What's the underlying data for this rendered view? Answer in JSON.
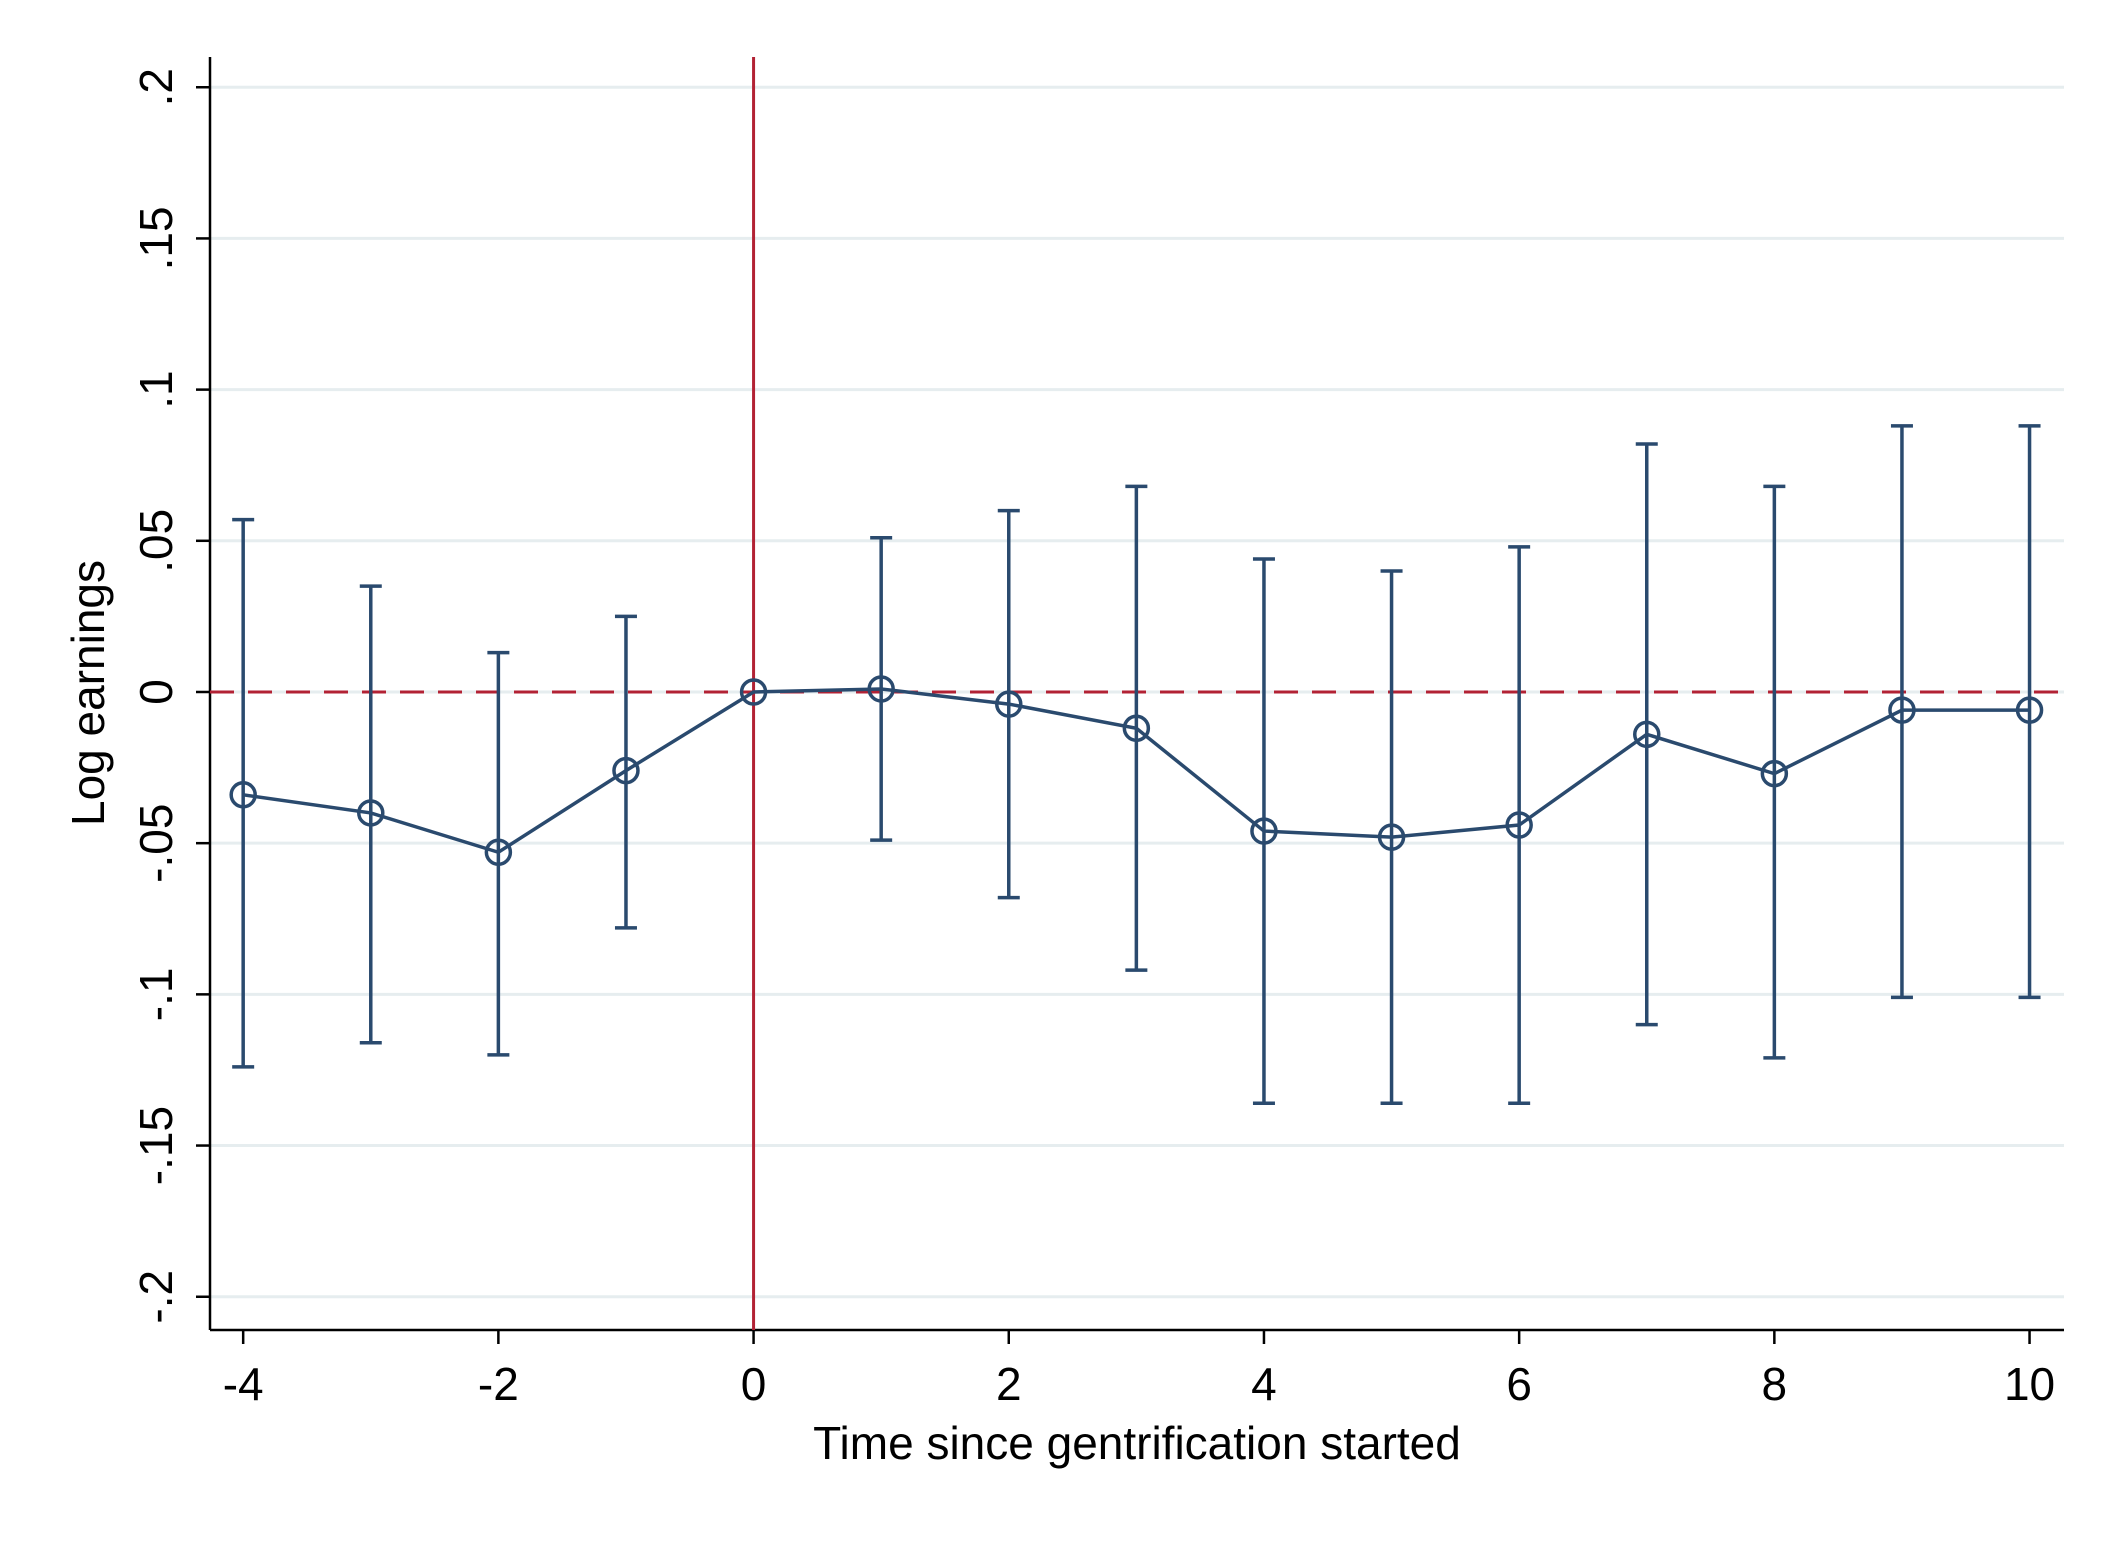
{
  "chart_data": {
    "type": "errorbar-line",
    "x_label": "Time since gentrification started",
    "y_label": "Log earnings",
    "x": [
      -4,
      -3,
      -2,
      -1,
      0,
      1,
      2,
      3,
      4,
      5,
      6,
      7,
      8,
      9,
      10
    ],
    "series": [
      {
        "color": "#2a4a6e",
        "values": [
          -0.034,
          -0.04,
          -0.053,
          -0.026,
          0,
          0.001,
          -0.004,
          -0.012,
          -0.046,
          -0.048,
          -0.044,
          -0.014,
          -0.027,
          -0.006,
          -0.006
        ],
        "lower": [
          -0.124,
          -0.116,
          -0.12,
          -0.078,
          null,
          -0.049,
          -0.068,
          -0.092,
          -0.136,
          -0.136,
          -0.136,
          -0.11,
          -0.121,
          -0.101,
          -0.101
        ],
        "upper": [
          0.057,
          0.035,
          0.013,
          0.025,
          null,
          0.051,
          0.06,
          0.068,
          0.044,
          0.04,
          0.048,
          0.082,
          0.068,
          0.088,
          0.088
        ]
      }
    ],
    "reference_lines": {
      "x": 0,
      "y": 0,
      "color": "#b22234"
    },
    "xlim": [
      -4.26,
      10.27
    ],
    "ylim": [
      -0.211,
      0.21
    ],
    "xticks": [
      -4,
      -2,
      0,
      2,
      4,
      6,
      8,
      10
    ],
    "yticks": [
      {
        "value": -0.2,
        "label": "-.2"
      },
      {
        "value": -0.15,
        "label": "-.15"
      },
      {
        "value": -0.1,
        "label": "-.1"
      },
      {
        "value": -0.05,
        "label": "-.05"
      },
      0,
      {
        "value": 0.05,
        "label": ".05"
      },
      {
        "value": 0.1,
        "label": ".1"
      },
      {
        "value": 0.15,
        "label": ".15"
      },
      {
        "value": 0.2,
        "label": ".2"
      }
    ],
    "grid": true
  }
}
